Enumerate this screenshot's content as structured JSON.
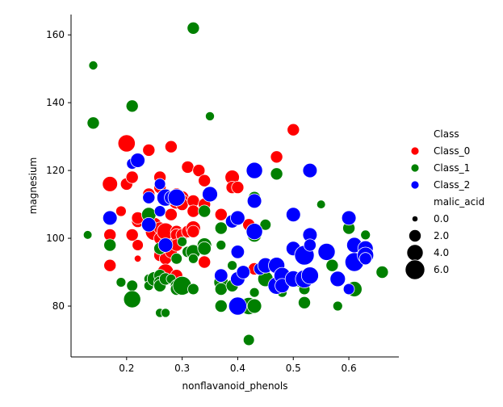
{
  "chart_data": {
    "type": "scatter",
    "xlabel": "nonflavanoid_phenols",
    "ylabel": "magnesium",
    "xlim": [
      0.1,
      0.69
    ],
    "ylim": [
      65,
      166
    ],
    "xticks": [
      0.2,
      0.3,
      0.4,
      0.5,
      0.6
    ],
    "xtick_labels": [
      "0.2",
      "0.3",
      "0.4",
      "0.5",
      "0.6"
    ],
    "yticks": [
      80,
      100,
      120,
      140,
      160
    ],
    "ytick_labels": [
      "80",
      "100",
      "120",
      "140",
      "160"
    ],
    "grid": false,
    "hue_field": "Class",
    "size_field": "malic_acid",
    "legend": {
      "placement": "right",
      "hue_title": "Class",
      "size_title": "malic_acid",
      "sizes": [
        {
          "label": "0.0",
          "value": 0.0
        },
        {
          "label": "2.0",
          "value": 2.0
        },
        {
          "label": "4.0",
          "value": 4.0
        },
        {
          "label": "6.0",
          "value": 6.0
        }
      ]
    },
    "series": [
      {
        "name": "Class_0",
        "color": "#ff0000",
        "points": [
          [
            0.2,
            128,
            4.6
          ],
          [
            0.17,
            116,
            3.4
          ],
          [
            0.22,
            94,
            0.2
          ],
          [
            0.17,
            101,
            2.0
          ],
          [
            0.17,
            92,
            2.0
          ],
          [
            0.19,
            108,
            1.3
          ],
          [
            0.2,
            116,
            2.0
          ],
          [
            0.21,
            118,
            2.0
          ],
          [
            0.21,
            101,
            2.0
          ],
          [
            0.22,
            105,
            2.0
          ],
          [
            0.22,
            106,
            2.0
          ],
          [
            0.22,
            98,
            1.5
          ],
          [
            0.24,
            112,
            2.0
          ],
          [
            0.24,
            126,
            2.0
          ],
          [
            0.24,
            113,
            2.0
          ],
          [
            0.25,
            104,
            3.0
          ],
          [
            0.25,
            102,
            5.0
          ],
          [
            0.26,
            118,
            2.0
          ],
          [
            0.26,
            115,
            2.0
          ],
          [
            0.26,
            103,
            2.0
          ],
          [
            0.26,
            100,
            2.0
          ],
          [
            0.26,
            96,
            2.0
          ],
          [
            0.26,
            95,
            2.0
          ],
          [
            0.27,
            102,
            4.5
          ],
          [
            0.27,
            94,
            2.0
          ],
          [
            0.27,
            90,
            4.0
          ],
          [
            0.28,
            127,
            2.0
          ],
          [
            0.28,
            107,
            2.0
          ],
          [
            0.28,
            98,
            2.0
          ],
          [
            0.28,
            96,
            2.0
          ],
          [
            0.29,
            113,
            2.0
          ],
          [
            0.29,
            111,
            3.8
          ],
          [
            0.29,
            102,
            2.0
          ],
          [
            0.29,
            101,
            2.0
          ],
          [
            0.29,
            98,
            2.0
          ],
          [
            0.29,
            89,
            2.0
          ],
          [
            0.3,
            112,
            2.5
          ],
          [
            0.3,
            111,
            2.5
          ],
          [
            0.3,
            110,
            2.0
          ],
          [
            0.3,
            101,
            2.0
          ],
          [
            0.31,
            121,
            2.0
          ],
          [
            0.31,
            102,
            2.0
          ],
          [
            0.32,
            111,
            2.0
          ],
          [
            0.32,
            108,
            2.0
          ],
          [
            0.32,
            103,
            3.0
          ],
          [
            0.32,
            102,
            2.0
          ],
          [
            0.33,
            120,
            2.0
          ],
          [
            0.34,
            117,
            2.0
          ],
          [
            0.34,
            110,
            2.0
          ],
          [
            0.34,
            93,
            2.0
          ],
          [
            0.37,
            107,
            2.0
          ],
          [
            0.39,
            118,
            3.0
          ],
          [
            0.39,
            115,
            2.0
          ],
          [
            0.4,
            115,
            2.0
          ],
          [
            0.42,
            104,
            2.0
          ],
          [
            0.43,
            91,
            2.0
          ],
          [
            0.47,
            124,
            2.0
          ],
          [
            0.5,
            132,
            2.0
          ]
        ]
      },
      {
        "name": "Class_1",
        "color": "#008000",
        "points": [
          [
            0.14,
            151,
            0.8
          ],
          [
            0.14,
            134,
            2.0
          ],
          [
            0.13,
            101,
            0.7
          ],
          [
            0.17,
            98,
            2.0
          ],
          [
            0.19,
            87,
            1.0
          ],
          [
            0.21,
            139,
            2.0
          ],
          [
            0.21,
            86,
            1.5
          ],
          [
            0.21,
            82,
            4.5
          ],
          [
            0.24,
            107,
            3.0
          ],
          [
            0.24,
            88,
            1.0
          ],
          [
            0.24,
            86,
            1.0
          ],
          [
            0.25,
            88,
            3.0
          ],
          [
            0.26,
            97,
            2.0
          ],
          [
            0.26,
            89,
            2.0
          ],
          [
            0.26,
            87,
            2.0
          ],
          [
            0.26,
            86,
            2.0
          ],
          [
            0.26,
            78,
            0.8
          ],
          [
            0.27,
            88,
            2.0
          ],
          [
            0.27,
            78,
            0.8
          ],
          [
            0.28,
            88,
            1.0
          ],
          [
            0.29,
            94,
            1.5
          ],
          [
            0.29,
            86,
            2.0
          ],
          [
            0.29,
            85,
            2.0
          ],
          [
            0.3,
            99,
            1.0
          ],
          [
            0.3,
            86,
            5.5
          ],
          [
            0.31,
            96,
            1.5
          ],
          [
            0.32,
            162,
            2.0
          ],
          [
            0.32,
            96,
            3.0
          ],
          [
            0.32,
            94,
            1.0
          ],
          [
            0.32,
            85,
            1.5
          ],
          [
            0.34,
            108,
            2.0
          ],
          [
            0.34,
            98,
            3.0
          ],
          [
            0.34,
            97,
            2.5
          ],
          [
            0.35,
            136,
            0.8
          ],
          [
            0.37,
            103,
            2.0
          ],
          [
            0.37,
            98,
            1.0
          ],
          [
            0.37,
            87,
            3.0
          ],
          [
            0.37,
            85,
            2.0
          ],
          [
            0.37,
            80,
            2.0
          ],
          [
            0.39,
            92,
            1.0
          ],
          [
            0.39,
            86,
            2.0
          ],
          [
            0.4,
            80,
            3.0
          ],
          [
            0.4,
            79,
            1.5
          ],
          [
            0.42,
            80,
            4.5
          ],
          [
            0.42,
            70,
            1.5
          ],
          [
            0.43,
            112,
            2.0
          ],
          [
            0.43,
            111,
            2.0
          ],
          [
            0.43,
            102,
            2.0
          ],
          [
            0.43,
            101,
            3.0
          ],
          [
            0.43,
            84,
            1.0
          ],
          [
            0.43,
            80,
            3.0
          ],
          [
            0.45,
            104,
            1.5
          ],
          [
            0.45,
            88,
            3.5
          ],
          [
            0.47,
            119,
            2.0
          ],
          [
            0.48,
            86,
            2.0
          ],
          [
            0.48,
            84,
            1.0
          ],
          [
            0.51,
            87,
            1.0
          ],
          [
            0.52,
            85,
            1.5
          ],
          [
            0.52,
            81,
            2.0
          ],
          [
            0.55,
            110,
            0.7
          ],
          [
            0.57,
            92,
            2.0
          ],
          [
            0.58,
            80,
            1.0
          ],
          [
            0.6,
            103,
            2.0
          ],
          [
            0.61,
            85,
            3.5
          ],
          [
            0.63,
            101,
            1.0
          ],
          [
            0.66,
            90,
            2.0
          ]
        ]
      },
      {
        "name": "Class_2",
        "color": "#0000ff",
        "points": [
          [
            0.17,
            106,
            3.0
          ],
          [
            0.21,
            122,
            1.5
          ],
          [
            0.22,
            123,
            3.0
          ],
          [
            0.24,
            112,
            2.0
          ],
          [
            0.24,
            104,
            3.0
          ],
          [
            0.26,
            116,
            1.5
          ],
          [
            0.26,
            108,
            1.5
          ],
          [
            0.27,
            112,
            4.5
          ],
          [
            0.27,
            98,
            3.0
          ],
          [
            0.28,
            112,
            2.5
          ],
          [
            0.29,
            112,
            4.5
          ],
          [
            0.35,
            113,
            3.5
          ],
          [
            0.37,
            89,
            2.5
          ],
          [
            0.39,
            105,
            2.5
          ],
          [
            0.4,
            106,
            3.0
          ],
          [
            0.4,
            96,
            2.5
          ],
          [
            0.4,
            88,
            3.0
          ],
          [
            0.4,
            80,
            5.0
          ],
          [
            0.41,
            90,
            2.5
          ],
          [
            0.43,
            120,
            4.0
          ],
          [
            0.43,
            111,
            3.0
          ],
          [
            0.43,
            102,
            4.0
          ],
          [
            0.44,
            91,
            2.0
          ],
          [
            0.45,
            92,
            3.5
          ],
          [
            0.47,
            92,
            4.0
          ],
          [
            0.47,
            86,
            4.5
          ],
          [
            0.48,
            89,
            4.0
          ],
          [
            0.48,
            86,
            3.0
          ],
          [
            0.5,
            107,
            3.0
          ],
          [
            0.5,
            97,
            3.0
          ],
          [
            0.5,
            88,
            4.0
          ],
          [
            0.52,
            95,
            6.0
          ],
          [
            0.52,
            88,
            5.0
          ],
          [
            0.53,
            120,
            3.0
          ],
          [
            0.53,
            101,
            3.0
          ],
          [
            0.53,
            98,
            2.0
          ],
          [
            0.53,
            89,
            4.5
          ],
          [
            0.56,
            96,
            4.5
          ],
          [
            0.58,
            88,
            3.5
          ],
          [
            0.6,
            106,
            3.0
          ],
          [
            0.6,
            85,
            1.5
          ],
          [
            0.61,
            98,
            3.5
          ],
          [
            0.61,
            93,
            5.5
          ],
          [
            0.63,
            97,
            3.5
          ],
          [
            0.63,
            95,
            4.0
          ],
          [
            0.63,
            94,
            2.0
          ]
        ]
      }
    ]
  }
}
